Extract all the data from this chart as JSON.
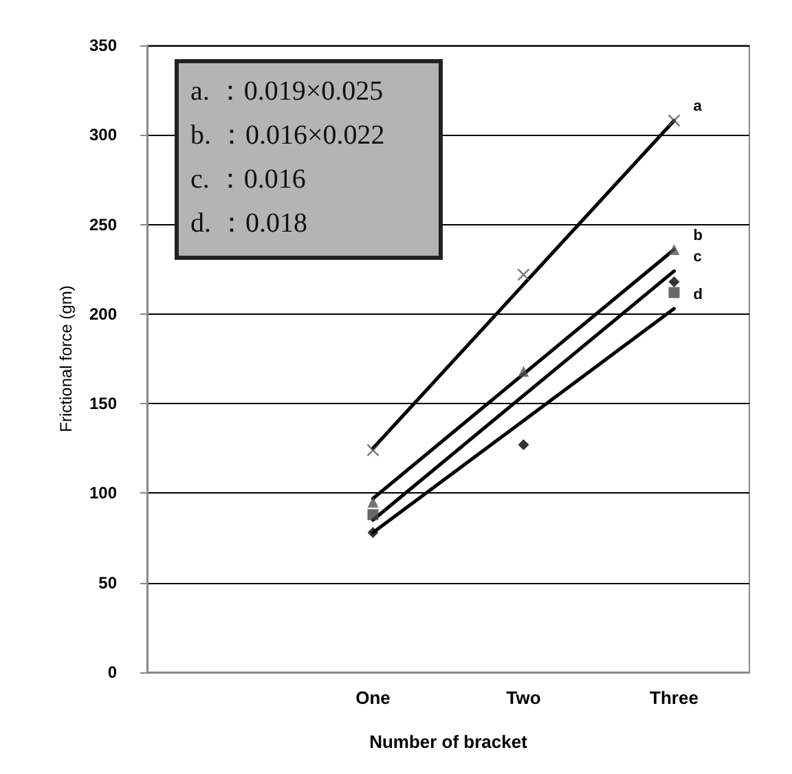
{
  "chart_data": {
    "type": "line",
    "xlabel": "Number of bracket",
    "ylabel": "Frictional force (gm)",
    "categories": [
      null,
      "One",
      "Two",
      "Three"
    ],
    "series": [
      {
        "name": "a",
        "color": "#000000",
        "values": [
          null,
          125,
          null,
          308
        ]
      },
      {
        "name": "b",
        "color": "#000000",
        "values": [
          null,
          97,
          null,
          236
        ]
      },
      {
        "name": "c",
        "color": "#000000",
        "values": [
          null,
          85,
          null,
          224
        ]
      },
      {
        "name": "d",
        "color": "#000000",
        "values": [
          null,
          78,
          null,
          203
        ]
      },
      {
        "type": "scatter",
        "marker": "cross",
        "color": "#555555",
        "values": [
          null,
          124,
          222,
          308
        ]
      },
      {
        "type": "scatter",
        "marker": "triangle",
        "color": "#555555",
        "values": [
          null,
          95,
          168,
          236
        ]
      },
      {
        "type": "scatter",
        "marker": "square",
        "color": "#444444",
        "values": [
          null,
          88,
          null,
          212
        ]
      },
      {
        "type": "scatter",
        "marker": "diamond",
        "color": "#000000",
        "values": [
          null,
          78,
          127,
          218
        ]
      }
    ],
    "ylim": [
      0,
      350
    ],
    "yticks": [
      0,
      50,
      100,
      150,
      200,
      250,
      300,
      350
    ],
    "grid": "y",
    "legend": false,
    "line_style": "solid",
    "annotations": [
      "a. ：0.019×0.025",
      "b. ：0.016×0.022",
      "c. ：0.016",
      "d. ：0.018"
    ]
  }
}
